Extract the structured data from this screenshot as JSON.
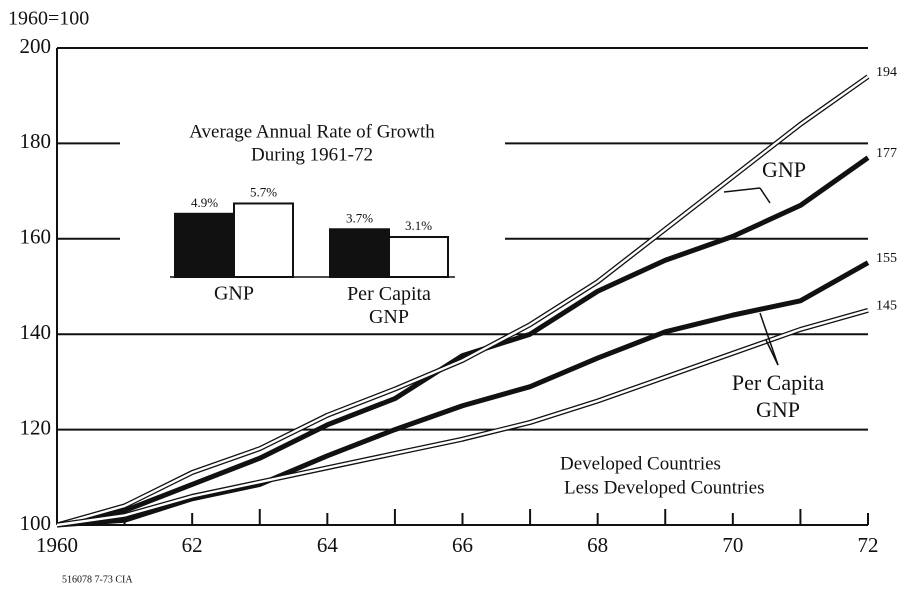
{
  "chart_data": [
    {
      "type": "line",
      "y_label": "1960=100",
      "x": [
        1960,
        1961,
        1962,
        1963,
        1964,
        1965,
        1966,
        1967,
        1968,
        1969,
        1970,
        1971,
        1972
      ],
      "xlim": [
        1960,
        1972
      ],
      "xticks": [
        1960,
        {
          "value": 1962,
          "label": "62"
        },
        {
          "value": 1964,
          "label": "64"
        },
        {
          "value": 1966,
          "label": "66"
        },
        {
          "value": 1968,
          "label": "68"
        },
        {
          "value": 1970,
          "label": "70"
        },
        {
          "value": 1972,
          "label": "72"
        }
      ],
      "xminorticks": [
        1961,
        1963,
        1965,
        1967,
        1969,
        1971
      ],
      "ylim": [
        100,
        200
      ],
      "yticks": [
        100,
        120,
        140,
        160,
        180,
        200
      ],
      "grid": true,
      "series": [
        {
          "name": "Developed Countries",
          "color": "#111111",
          "style": "thick",
          "values": [
            100,
            103,
            108.5,
            114,
            121,
            126.5,
            135.5,
            140,
            149,
            155.5,
            160.5,
            167,
            177
          ]
        },
        {
          "name": "Developed Countries",
          "color": "#111111",
          "style": "thick",
          "values": [
            100,
            101,
            105.5,
            108.5,
            114.5,
            120,
            125,
            129,
            135,
            140.5,
            144,
            147,
            155
          ]
        },
        {
          "name": "Less Developed Countries",
          "color": "#111111",
          "style": "double",
          "values": [
            100,
            104,
            111,
            116,
            123,
            128.5,
            134.5,
            142,
            151,
            162,
            173,
            184,
            194
          ]
        },
        {
          "name": "Less Developed Countries",
          "color": "#111111",
          "style": "double",
          "values": [
            100,
            102,
            106,
            109,
            112,
            115,
            118,
            121.5,
            126,
            131,
            136,
            141,
            145
          ]
        }
      ],
      "annotations": [
        "GNP",
        "Per Capita GNP"
      ],
      "footnote": "516078 7-73 CIA"
    },
    {
      "type": "bar",
      "title": "Average Annual Rate of Growth",
      "subtitle": "During 1961-72",
      "categories": [
        "GNP",
        "Per Capita GNP"
      ],
      "series": [
        {
          "name": "Developed Countries",
          "color": "#111111",
          "values": [
            4.9,
            3.7
          ],
          "value_labels": [
            "4.9%",
            "3.7%"
          ]
        },
        {
          "name": "Less Developed Countries",
          "color": "#ffffff",
          "values": [
            5.7,
            3.1
          ],
          "value_labels": [
            "5.7%",
            "3.1%"
          ]
        }
      ]
    }
  ]
}
